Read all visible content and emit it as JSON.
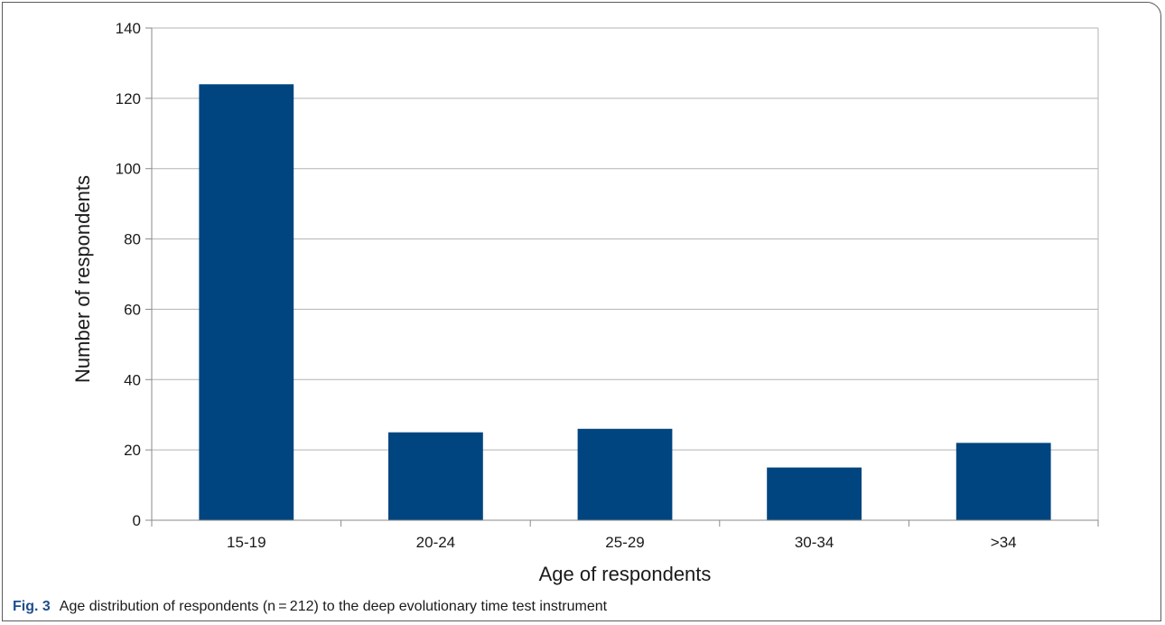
{
  "chart_data": {
    "type": "bar",
    "categories": [
      "15-19",
      "20-24",
      "25-29",
      "30-34",
      ">34"
    ],
    "values": [
      124,
      25,
      26,
      15,
      22
    ],
    "xlabel": "Age of respondents",
    "ylabel": "Number of respondents",
    "ylim": [
      0,
      140
    ],
    "yticks": [
      0,
      20,
      40,
      60,
      80,
      100,
      120,
      140
    ],
    "grid": true,
    "legend": "none",
    "bar_color": "#00457f",
    "grid_color": "#b3b3b3"
  },
  "caption": {
    "label": "Fig. 3",
    "text": "Age distribution of respondents (n = 212) to the deep evolutionary time test instrument"
  }
}
